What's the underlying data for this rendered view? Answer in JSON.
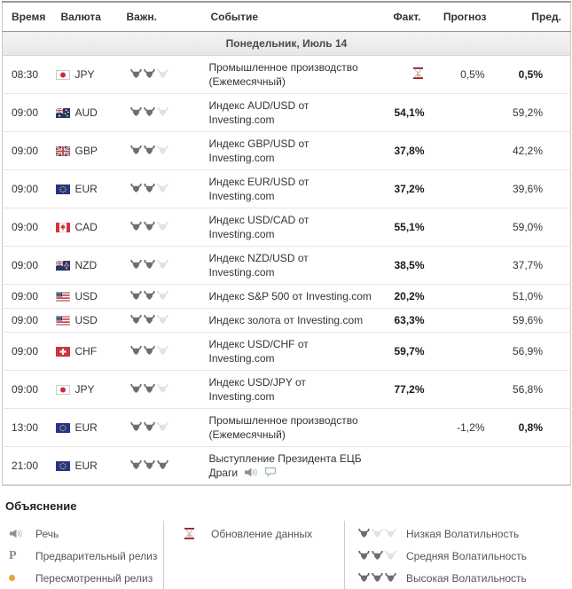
{
  "colors": {
    "hourglass_red": "#9e1b1b",
    "sand_orange": "#e8a33f",
    "bull_dark": "#6e6e6e",
    "bull_light": "#e2e2e2",
    "row_border": "#e5e5e5",
    "day_row_bg": "#ececec"
  },
  "table": {
    "columns": [
      "Время",
      "Валюта",
      "Важн.",
      "Событие",
      "Факт.",
      "Прогноз",
      "Пред."
    ],
    "day_header": "Понедельник, Июль 14",
    "rows": [
      {
        "time": "08:30",
        "currency": "JPY",
        "flag": "jpy",
        "importance": 2,
        "event_line1": "Промышленное производство",
        "event_line2": "(Ежемесячный)",
        "fact": "",
        "fact_icon": "hourglass",
        "forecast": "0,5%",
        "previous": "0,5%",
        "previous_bold": true,
        "event_icons": []
      },
      {
        "time": "09:00",
        "currency": "AUD",
        "flag": "aud",
        "importance": 2,
        "event_line1": "Индекс AUD/USD от",
        "event_line2": "Investing.com",
        "fact": "54,1%",
        "fact_icon": "",
        "forecast": "",
        "previous": "59,2%",
        "previous_bold": false,
        "event_icons": []
      },
      {
        "time": "09:00",
        "currency": "GBP",
        "flag": "gbp",
        "importance": 2,
        "event_line1": "Индекс GBP/USD от",
        "event_line2": "Investing.com",
        "fact": "37,8%",
        "fact_icon": "",
        "forecast": "",
        "previous": "42,2%",
        "previous_bold": false,
        "event_icons": []
      },
      {
        "time": "09:00",
        "currency": "EUR",
        "flag": "eur",
        "importance": 2,
        "event_line1": "Индекс EUR/USD от",
        "event_line2": "Investing.com",
        "fact": "37,2%",
        "fact_icon": "",
        "forecast": "",
        "previous": "39,6%",
        "previous_bold": false,
        "event_icons": []
      },
      {
        "time": "09:00",
        "currency": "CAD",
        "flag": "cad",
        "importance": 2,
        "event_line1": "Индекс USD/CAD от",
        "event_line2": "Investing.com",
        "fact": "55,1%",
        "fact_icon": "",
        "forecast": "",
        "previous": "59,0%",
        "previous_bold": false,
        "event_icons": []
      },
      {
        "time": "09:00",
        "currency": "NZD",
        "flag": "nzd",
        "importance": 2,
        "event_line1": "Индекс NZD/USD от",
        "event_line2": "Investing.com",
        "fact": "38,5%",
        "fact_icon": "",
        "forecast": "",
        "previous": "37,7%",
        "previous_bold": false,
        "event_icons": []
      },
      {
        "time": "09:00",
        "currency": "USD",
        "flag": "usd",
        "importance": 2,
        "event_line1": "Индекс S&P 500 от Investing.com",
        "event_line2": "",
        "fact": "20,2%",
        "fact_icon": "",
        "forecast": "",
        "previous": "51,0%",
        "previous_bold": false,
        "event_icons": []
      },
      {
        "time": "09:00",
        "currency": "USD",
        "flag": "usd",
        "importance": 2,
        "event_line1": "Индекс золота от Investing.com",
        "event_line2": "",
        "fact": "63,3%",
        "fact_icon": "",
        "forecast": "",
        "previous": "59,6%",
        "previous_bold": false,
        "event_icons": []
      },
      {
        "time": "09:00",
        "currency": "CHF",
        "flag": "chf",
        "importance": 2,
        "event_line1": "Индекс USD/CHF от",
        "event_line2": "Investing.com",
        "fact": "59,7%",
        "fact_icon": "",
        "forecast": "",
        "previous": "56,9%",
        "previous_bold": false,
        "event_icons": []
      },
      {
        "time": "09:00",
        "currency": "JPY",
        "flag": "jpy",
        "importance": 2,
        "event_line1": "Индекс USD/JPY от",
        "event_line2": "Investing.com",
        "fact": "77,2%",
        "fact_icon": "",
        "forecast": "",
        "previous": "56,8%",
        "previous_bold": false,
        "event_icons": []
      },
      {
        "time": "13:00",
        "currency": "EUR",
        "flag": "eur",
        "importance": 2,
        "event_line1": "Промышленное производство",
        "event_line2": "(Ежемесячный)",
        "fact": "",
        "fact_icon": "",
        "forecast": "-1,2%",
        "previous": "0,8%",
        "previous_bold": true,
        "event_icons": []
      },
      {
        "time": "21:00",
        "currency": "EUR",
        "flag": "eur",
        "importance": 3,
        "event_line1": "Выступление Президента ЕЦБ",
        "event_line2": "Драги",
        "fact": "",
        "fact_icon": "",
        "forecast": "",
        "previous": "",
        "previous_bold": false,
        "event_icons": [
          "speech",
          "comment"
        ]
      }
    ]
  },
  "legend": {
    "title": "Объяснение",
    "col1": [
      {
        "icon": "speech",
        "label": "Речь"
      },
      {
        "icon": "preliminary",
        "label": "Предварительный релиз"
      },
      {
        "icon": "revised",
        "label": "Пересмотренный релиз"
      }
    ],
    "col2": [
      {
        "icon": "hourglass",
        "label": "Обновление данных"
      }
    ],
    "col3": [
      {
        "bulls": 1,
        "label": "Низкая Волатильность"
      },
      {
        "bulls": 2,
        "label": "Средняя Волатильность"
      },
      {
        "bulls": 3,
        "label": "Высокая Волатильность"
      }
    ]
  }
}
